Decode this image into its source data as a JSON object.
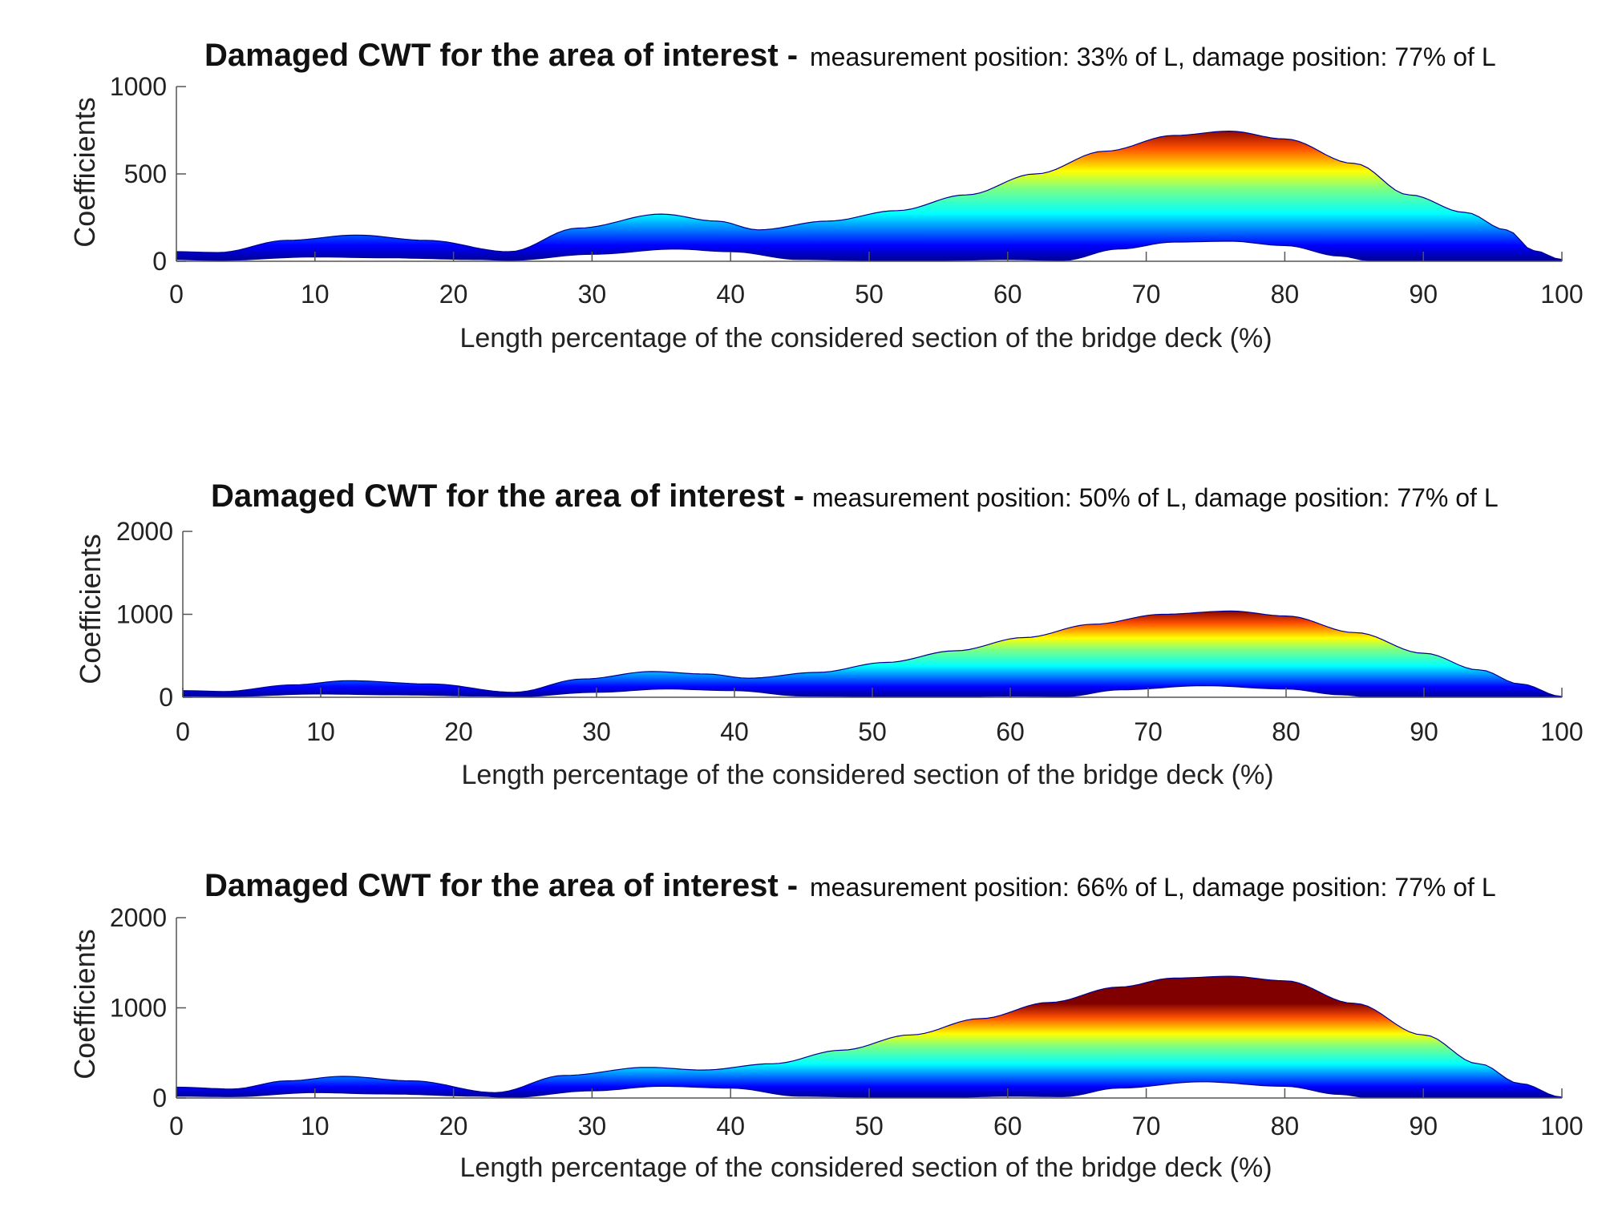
{
  "chart_data": [
    {
      "type": "area",
      "title": "Damaged CWT for the area of interest -",
      "subtitle": "measurement position: 33% of L, damage position: 77% of L",
      "xlabel": "Length percentage of the considered section of the bridge deck (%)",
      "ylabel": "Coefficients",
      "xlim": [
        0,
        100
      ],
      "ylim": [
        0,
        1000
      ],
      "xticks": [
        "0",
        "10",
        "20",
        "30",
        "40",
        "50",
        "60",
        "70",
        "80",
        "90",
        "100"
      ],
      "yticks": [
        "0",
        "500",
        "1000"
      ],
      "grid": false,
      "colormap": "jet",
      "series": [
        {
          "name": "upper envelope",
          "x": [
            0,
            3,
            8,
            13,
            18,
            24,
            29,
            35,
            39,
            42,
            47,
            52,
            57,
            62,
            67,
            72,
            76,
            80,
            85,
            89,
            93,
            96,
            98,
            100
          ],
          "values": [
            55,
            50,
            120,
            150,
            120,
            55,
            190,
            270,
            230,
            180,
            230,
            290,
            380,
            500,
            630,
            720,
            745,
            700,
            560,
            380,
            280,
            180,
            60,
            10
          ]
        },
        {
          "name": "lower envelope",
          "x": [
            0,
            3,
            10,
            15,
            22,
            24,
            30,
            36,
            40,
            45,
            50,
            55,
            60,
            64,
            68,
            72,
            76,
            80,
            84,
            86,
            90,
            95,
            98,
            100
          ],
          "values": [
            10,
            5,
            25,
            20,
            10,
            5,
            40,
            70,
            55,
            10,
            5,
            5,
            10,
            5,
            70,
            110,
            115,
            90,
            30,
            5,
            5,
            5,
            5,
            5
          ]
        }
      ]
    },
    {
      "type": "area",
      "title": "Damaged CWT for the area of interest -",
      "subtitle": "measurement position: 50% of L, damage position: 77% of L",
      "xlabel": "Length percentage of the considered section of the bridge deck (%)",
      "ylabel": "Coefficients",
      "xlim": [
        0,
        100
      ],
      "ylim": [
        0,
        2000
      ],
      "xticks": [
        "0",
        "10",
        "20",
        "30",
        "40",
        "50",
        "60",
        "70",
        "80",
        "90",
        "100"
      ],
      "yticks": [
        "0",
        "1000",
        "2000"
      ],
      "grid": false,
      "colormap": "jet",
      "series": [
        {
          "name": "upper envelope",
          "x": [
            0,
            3,
            8,
            12,
            18,
            24,
            29,
            34,
            38,
            41,
            46,
            51,
            56,
            61,
            66,
            71,
            76,
            80,
            85,
            90,
            94,
            97,
            100
          ],
          "values": [
            80,
            70,
            150,
            200,
            160,
            60,
            220,
            310,
            280,
            230,
            300,
            420,
            560,
            720,
            880,
            1000,
            1040,
            980,
            780,
            530,
            330,
            160,
            10
          ]
        },
        {
          "name": "lower envelope",
          "x": [
            0,
            3,
            10,
            15,
            22,
            24,
            30,
            35,
            40,
            45,
            50,
            55,
            60,
            64,
            68,
            74,
            80,
            84,
            86,
            90,
            95,
            100
          ],
          "values": [
            15,
            10,
            40,
            30,
            15,
            5,
            60,
            100,
            80,
            15,
            10,
            5,
            15,
            10,
            90,
            140,
            100,
            30,
            5,
            5,
            5,
            5
          ]
        }
      ]
    },
    {
      "type": "area",
      "title": "Damaged CWT for the area of interest -",
      "subtitle": "measurement position: 66% of L, damage position: 77% of L",
      "xlabel": "Length percentage of the considered section of the bridge deck (%)",
      "ylabel": "Coefficients",
      "xlim": [
        0,
        100
      ],
      "ylim": [
        0,
        2000
      ],
      "xticks": [
        "0",
        "10",
        "20",
        "30",
        "40",
        "50",
        "60",
        "70",
        "80",
        "90",
        "100"
      ],
      "yticks": [
        "0",
        "1000",
        "2000"
      ],
      "grid": false,
      "colormap": "jet",
      "series": [
        {
          "name": "upper envelope",
          "x": [
            0,
            4,
            8,
            12,
            17,
            23,
            28,
            34,
            38,
            43,
            48,
            53,
            58,
            63,
            68,
            72,
            76,
            80,
            85,
            90,
            94,
            97,
            100
          ],
          "values": [
            120,
            100,
            190,
            240,
            190,
            60,
            250,
            340,
            310,
            380,
            530,
            700,
            880,
            1060,
            1230,
            1330,
            1350,
            1300,
            1050,
            700,
            380,
            160,
            10
          ]
        },
        {
          "name": "lower envelope",
          "x": [
            0,
            4,
            10,
            15,
            22,
            24,
            30,
            35,
            40,
            45,
            50,
            55,
            60,
            64,
            68,
            74,
            80,
            84,
            86,
            90,
            95,
            100
          ],
          "values": [
            20,
            15,
            60,
            45,
            20,
            5,
            80,
            130,
            110,
            20,
            10,
            5,
            20,
            15,
            110,
            180,
            130,
            40,
            5,
            5,
            5,
            5
          ]
        }
      ]
    }
  ]
}
